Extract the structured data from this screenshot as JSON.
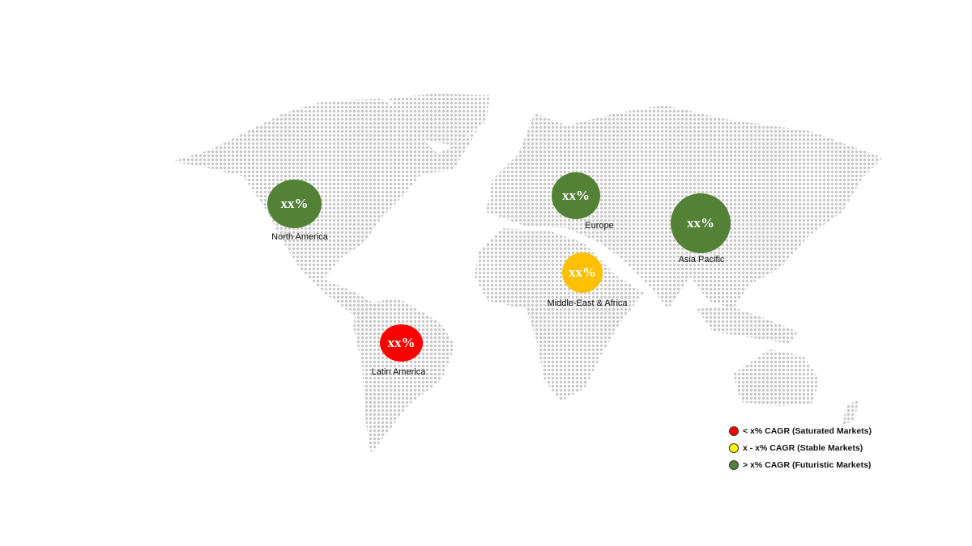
{
  "regions": [
    {
      "name": "North America",
      "value": "xx%",
      "color": "#538135"
    },
    {
      "name": "Europe",
      "value": "xx%",
      "color": "#538135"
    },
    {
      "name": "Asia Pacific",
      "value": "xx%",
      "color": "#538135"
    },
    {
      "name": "Middle-East & Africa",
      "value": "xx%",
      "color": "#FFC000"
    },
    {
      "name": "Latin America",
      "value": "xx%",
      "color": "#FF0000"
    }
  ],
  "legend": [
    {
      "label": "< x% CAGR (Saturated Markets)",
      "color": "#FF0000"
    },
    {
      "label": "x - x% CAGR (Stable Markets)",
      "color": "#FFFF00"
    },
    {
      "label": "> x% CAGR (Futuristic Markets)",
      "color": "#538135"
    }
  ],
  "map_dot_color": "#C8C8C8"
}
